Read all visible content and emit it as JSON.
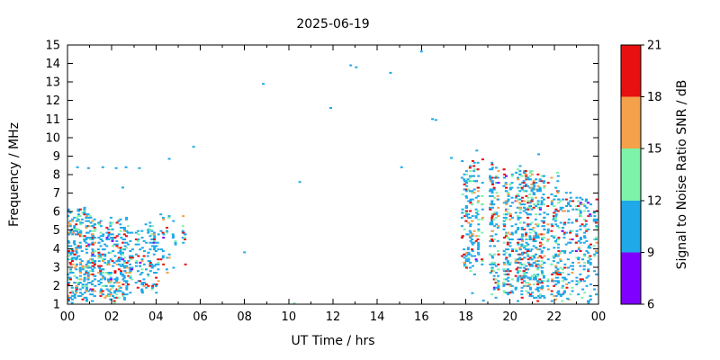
{
  "chart_data": {
    "type": "scatter",
    "title": "2025-06-19",
    "xlabel": "UT Time / hrs",
    "ylabel": "Frequency / MHz",
    "xlim": [
      0,
      24
    ],
    "ylim": [
      1,
      15
    ],
    "grid": false,
    "x_ticks": {
      "values": [
        0,
        2,
        4,
        6,
        8,
        10,
        12,
        14,
        16,
        18,
        20,
        22,
        24
      ],
      "labels": [
        "00",
        "02",
        "04",
        "06",
        "08",
        "10",
        "12",
        "14",
        "16",
        "18",
        "20",
        "22",
        "00"
      ],
      "minor_step": 1
    },
    "y_ticks": {
      "values": [
        1,
        2,
        3,
        4,
        5,
        6,
        7,
        8,
        9,
        10,
        11,
        12,
        13,
        14,
        15
      ]
    },
    "colorbar": {
      "label": "Signal to Noise Ratio SNR / dB",
      "range": [
        6,
        21
      ],
      "ticks": [
        6,
        9,
        12,
        15,
        18,
        21
      ],
      "segments": [
        {
          "from": 6,
          "to": 9,
          "color": "#8000ff"
        },
        {
          "from": 9,
          "to": 12,
          "color": "#1fa9e8"
        },
        {
          "from": 12,
          "to": 15,
          "color": "#7df2a9"
        },
        {
          "from": 15,
          "to": 18,
          "color": "#f5a04b"
        },
        {
          "from": 18,
          "to": 21,
          "color": "#e81010"
        }
      ]
    },
    "color_weights": [
      {
        "band": "18-21",
        "color": "#e81010",
        "weight": 0.13
      },
      {
        "band": "15-18",
        "color": "#f5a04b",
        "weight": 0.08
      },
      {
        "band": "12-15",
        "color": "#7df2a9",
        "weight": 0.15
      },
      {
        "band": "9-12",
        "color": "#1fa9e8",
        "weight": 0.62
      },
      {
        "band": "6-9",
        "color": "#8000ff",
        "weight": 0.02
      }
    ],
    "clusters": [
      {
        "t_start": 0.05,
        "t_end": 1.15,
        "f_min": 1.0,
        "f_max": 6.3,
        "col_step": 0.09,
        "col_prob": 0.95,
        "pts_min": 16,
        "pts_max": 32
      },
      {
        "t_start": 1.15,
        "t_end": 2.75,
        "f_min": 1.0,
        "f_max": 5.8,
        "col_step": 0.09,
        "col_prob": 0.9,
        "pts_min": 10,
        "pts_max": 24
      },
      {
        "t_start": 2.75,
        "t_end": 4.15,
        "f_min": 1.5,
        "f_max": 5.6,
        "col_step": 0.09,
        "col_prob": 0.75,
        "pts_min": 6,
        "pts_max": 16
      },
      {
        "t_start": 4.15,
        "t_end": 5.45,
        "f_min": 2.7,
        "f_max": 6.0,
        "col_step": 0.09,
        "col_prob": 0.5,
        "pts_min": 3,
        "pts_max": 9
      },
      {
        "t_start": 5.45,
        "t_end": 5.95,
        "f_min": 4.3,
        "f_max": 5.6,
        "col_step": 0.09,
        "col_prob": 0.35,
        "pts_min": 2,
        "pts_max": 5
      },
      {
        "t_start": 17.85,
        "t_end": 19.2,
        "f_min": 2.4,
        "f_max": 9.0,
        "col_step": 0.09,
        "col_prob": 0.85,
        "pts_min": 12,
        "pts_max": 28
      },
      {
        "t_start": 19.2,
        "t_end": 22.2,
        "f_min": 1.0,
        "f_max": 8.6,
        "col_step": 0.09,
        "col_prob": 0.95,
        "pts_min": 16,
        "pts_max": 34
      },
      {
        "t_start": 22.2,
        "t_end": 23.95,
        "f_min": 1.0,
        "f_max": 7.3,
        "col_step": 0.09,
        "col_prob": 0.85,
        "pts_min": 7,
        "pts_max": 20
      }
    ],
    "isolated_points": [
      {
        "t": 0.45,
        "f": 8.4,
        "band": "9-12"
      },
      {
        "t": 0.95,
        "f": 8.35,
        "band": "9-12"
      },
      {
        "t": 1.6,
        "f": 8.4,
        "band": "9-12"
      },
      {
        "t": 2.2,
        "f": 8.35,
        "band": "9-12"
      },
      {
        "t": 2.5,
        "f": 7.3,
        "band": "9-12"
      },
      {
        "t": 2.65,
        "f": 8.4,
        "band": "9-12"
      },
      {
        "t": 3.25,
        "f": 8.35,
        "band": "9-12"
      },
      {
        "t": 4.6,
        "f": 8.85,
        "band": "9-12"
      },
      {
        "t": 5.7,
        "f": 9.5,
        "band": "9-12"
      },
      {
        "t": 8.0,
        "f": 3.8,
        "band": "9-12"
      },
      {
        "t": 8.85,
        "f": 12.9,
        "band": "9-12"
      },
      {
        "t": 10.25,
        "f": 1.05,
        "band": "12-15"
      },
      {
        "t": 10.5,
        "f": 7.6,
        "band": "9-12"
      },
      {
        "t": 11.9,
        "f": 11.6,
        "band": "9-12"
      },
      {
        "t": 12.8,
        "f": 13.9,
        "band": "9-12"
      },
      {
        "t": 13.05,
        "f": 13.8,
        "band": "9-12"
      },
      {
        "t": 14.6,
        "f": 13.5,
        "band": "9-12"
      },
      {
        "t": 15.1,
        "f": 8.4,
        "band": "9-12"
      },
      {
        "t": 16.0,
        "f": 14.65,
        "band": "9-12"
      },
      {
        "t": 16.5,
        "f": 11.0,
        "band": "9-12"
      },
      {
        "t": 16.65,
        "f": 10.95,
        "band": "9-12"
      },
      {
        "t": 17.35,
        "f": 8.9,
        "band": "9-12"
      },
      {
        "t": 18.3,
        "f": 1.6,
        "band": "9-12"
      },
      {
        "t": 18.5,
        "f": 9.3,
        "band": "9-12"
      },
      {
        "t": 18.8,
        "f": 1.2,
        "band": "9-12"
      },
      {
        "t": 21.3,
        "f": 9.1,
        "band": "9-12"
      },
      {
        "t": 22.6,
        "f": 1.3,
        "band": "9-12"
      }
    ]
  }
}
